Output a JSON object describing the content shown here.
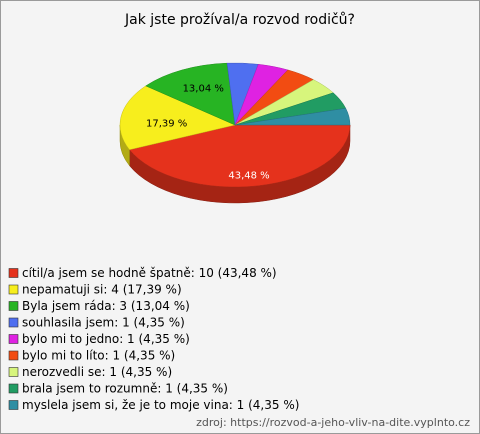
{
  "chart_data": {
    "type": "pie3d",
    "title": "Jak jste prožíval/a rozvod rodičů?",
    "categories": [
      "cítil/a jsem se hodně špatně: 10 (43,48 %)",
      "nepamatuji si: 4 (17,39 %)",
      "Byla jsem ráda: 3 (13,04 %)",
      "souhlasila jsem: 1 (4,35 %)",
      "bylo mi to jedno: 1 (4,35 %)",
      "bylo mi to líto: 1 (4,35 %)",
      "nerozvedli se: 1 (4,35 %)",
      "brala jsem to rozumně: 1 (4,35 %)",
      "myslela jsem si, že je to moje vina: 1 (4,35 %)"
    ],
    "values": [
      43.48,
      17.39,
      13.04,
      4.35,
      4.35,
      4.35,
      4.35,
      4.35,
      4.35
    ],
    "value_labels": [
      "43,48 %",
      "17,39 %",
      "13,04 %",
      null,
      null,
      null,
      null,
      null,
      null
    ],
    "colors": [
      "#e5321c",
      "#f7ee1d",
      "#27b423",
      "#4f6ff0",
      "#df22e2",
      "#f24c12",
      "#d7f57c",
      "#219c63",
      "#2f8ea3"
    ],
    "source": "zdroj: https://rozvod-a-jeho-vliv-na-dite.vyplnto.cz"
  }
}
